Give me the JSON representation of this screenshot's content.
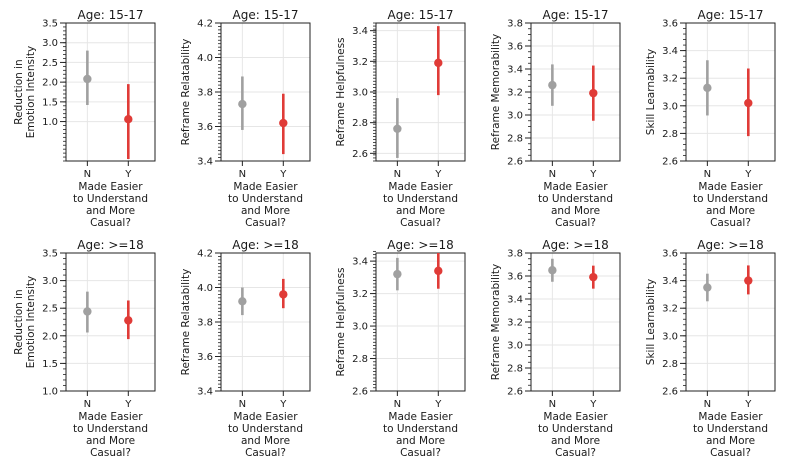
{
  "colors": {
    "N": "#a0a0a0",
    "Y": "#e03b37",
    "grid": "#e6e6e6",
    "axis": "#222222"
  },
  "chart_data": [
    {
      "type": "scatter",
      "title": "Age: 15-17",
      "ylabel": [
        "Reduction in",
        "Emotion Intensity"
      ],
      "ylim": [
        0.0,
        3.5
      ],
      "yticks": [
        "3.5",
        "3.0",
        "2.5",
        "2.0",
        "1.5",
        "1.0"
      ],
      "ytick_values": [
        3.5,
        3.0,
        2.5,
        2.0,
        1.5,
        1.0
      ],
      "minor_step": 0.1,
      "categories": [
        "N",
        "Y"
      ],
      "series": [
        {
          "name": "N",
          "mean": 2.08,
          "low": 1.42,
          "high": 2.8
        },
        {
          "name": "Y",
          "mean": 1.06,
          "low": 0.05,
          "high": 1.95
        }
      ],
      "xlabel": [
        "Made Easier",
        "to Understand",
        "and More",
        "Casual?"
      ]
    },
    {
      "type": "scatter",
      "title": "Age: 15-17",
      "ylabel": [
        "Reframe Relatability"
      ],
      "ylim": [
        3.4,
        4.2
      ],
      "yticks": [
        "4.2",
        "4.0",
        "3.8",
        "3.6",
        "3.4"
      ],
      "ytick_values": [
        4.2,
        4.0,
        3.8,
        3.6,
        3.4
      ],
      "minor_step": 0.02,
      "categories": [
        "N",
        "Y"
      ],
      "series": [
        {
          "name": "N",
          "mean": 3.73,
          "low": 3.58,
          "high": 3.89
        },
        {
          "name": "Y",
          "mean": 3.62,
          "low": 3.44,
          "high": 3.79
        }
      ],
      "xlabel": [
        "Made Easier",
        "to Understand",
        "and More",
        "Casual?"
      ]
    },
    {
      "type": "scatter",
      "title": "Age: 15-17",
      "ylabel": [
        "Reframe Helpfulness"
      ],
      "ylim": [
        2.55,
        3.45
      ],
      "yticks": [
        "3.4",
        "3.2",
        "3.0",
        "2.8",
        "2.6"
      ],
      "ytick_values": [
        3.4,
        3.2,
        3.0,
        2.8,
        2.6
      ],
      "minor_step": 0.02,
      "categories": [
        "N",
        "Y"
      ],
      "series": [
        {
          "name": "N",
          "mean": 2.76,
          "low": 2.57,
          "high": 2.96
        },
        {
          "name": "Y",
          "mean": 3.19,
          "low": 2.98,
          "high": 3.43
        }
      ],
      "xlabel": [
        "Made Easier",
        "to Understand",
        "and More",
        "Casual?"
      ]
    },
    {
      "type": "scatter",
      "title": "Age: 15-17",
      "ylabel": [
        "Reframe Memorability"
      ],
      "ylim": [
        2.6,
        3.8
      ],
      "yticks": [
        "3.8",
        "3.6",
        "3.4",
        "3.2",
        "3.0",
        "2.8",
        "2.6"
      ],
      "ytick_values": [
        3.8,
        3.6,
        3.4,
        3.2,
        3.0,
        2.8,
        2.6
      ],
      "minor_step": 0.05,
      "categories": [
        "N",
        "Y"
      ],
      "series": [
        {
          "name": "N",
          "mean": 3.26,
          "low": 3.08,
          "high": 3.44
        },
        {
          "name": "Y",
          "mean": 3.19,
          "low": 2.95,
          "high": 3.43
        }
      ],
      "xlabel": [
        "Made Easier",
        "to Understand",
        "and More",
        "Casual?"
      ]
    },
    {
      "type": "scatter",
      "title": "Age: 15-17",
      "ylabel": [
        "Skill Learnability"
      ],
      "ylim": [
        2.6,
        3.6
      ],
      "yticks": [
        "3.6",
        "3.4",
        "3.2",
        "3.0",
        "2.8",
        "2.6"
      ],
      "ytick_values": [
        3.6,
        3.4,
        3.2,
        3.0,
        2.8,
        2.6
      ],
      "minor_step": 0.04,
      "categories": [
        "N",
        "Y"
      ],
      "series": [
        {
          "name": "N",
          "mean": 3.13,
          "low": 2.93,
          "high": 3.33
        },
        {
          "name": "Y",
          "mean": 3.02,
          "low": 2.78,
          "high": 3.27
        }
      ],
      "xlabel": [
        "Made Easier",
        "to Understand",
        "and More",
        "Casual?"
      ]
    },
    {
      "type": "scatter",
      "title": "Age: >=18",
      "ylabel": [
        "Reduction in",
        "Emotion Intensity"
      ],
      "ylim": [
        1.0,
        3.5
      ],
      "yticks": [
        "3.5",
        "3.0",
        "2.5",
        "2.0",
        "1.5",
        "1.0"
      ],
      "ytick_values": [
        3.5,
        3.0,
        2.5,
        2.0,
        1.5,
        1.0
      ],
      "minor_step": 0.1,
      "categories": [
        "N",
        "Y"
      ],
      "series": [
        {
          "name": "N",
          "mean": 2.44,
          "low": 2.06,
          "high": 2.8
        },
        {
          "name": "Y",
          "mean": 2.28,
          "low": 1.94,
          "high": 2.64
        }
      ],
      "xlabel": [
        "Made Easier",
        "to Understand",
        "and More",
        "Casual?"
      ]
    },
    {
      "type": "scatter",
      "title": "Age: >=18",
      "ylabel": [
        "Reframe Relatability"
      ],
      "ylim": [
        3.4,
        4.2
      ],
      "yticks": [
        "4.2",
        "4.0",
        "3.8",
        "3.6",
        "3.4"
      ],
      "ytick_values": [
        4.2,
        4.0,
        3.8,
        3.6,
        3.4
      ],
      "minor_step": 0.02,
      "categories": [
        "N",
        "Y"
      ],
      "series": [
        {
          "name": "N",
          "mean": 3.92,
          "low": 3.84,
          "high": 4.0
        },
        {
          "name": "Y",
          "mean": 3.96,
          "low": 3.88,
          "high": 4.05
        }
      ],
      "xlabel": [
        "Made Easier",
        "to Understand",
        "and More",
        "Casual?"
      ]
    },
    {
      "type": "scatter",
      "title": "Age: >=18",
      "ylabel": [
        "Reframe Helpfulness"
      ],
      "ylim": [
        2.6,
        3.45
      ],
      "yticks": [
        "3.4",
        "3.2",
        "3.0",
        "2.8",
        "2.6"
      ],
      "ytick_values": [
        3.4,
        3.2,
        3.0,
        2.8,
        2.6
      ],
      "minor_step": 0.02,
      "categories": [
        "N",
        "Y"
      ],
      "series": [
        {
          "name": "N",
          "mean": 3.32,
          "low": 3.22,
          "high": 3.42
        },
        {
          "name": "Y",
          "mean": 3.34,
          "low": 3.23,
          "high": 3.45
        }
      ],
      "xlabel": [
        "Made Easier",
        "to Understand",
        "and More",
        "Casual?"
      ]
    },
    {
      "type": "scatter",
      "title": "Age: >=18",
      "ylabel": [
        "Reframe Memorability"
      ],
      "ylim": [
        2.6,
        3.8
      ],
      "yticks": [
        "3.8",
        "3.6",
        "3.4",
        "3.2",
        "3.0",
        "2.8",
        "2.6"
      ],
      "ytick_values": [
        3.8,
        3.6,
        3.4,
        3.2,
        3.0,
        2.8,
        2.6
      ],
      "minor_step": 0.05,
      "categories": [
        "N",
        "Y"
      ],
      "series": [
        {
          "name": "N",
          "mean": 3.65,
          "low": 3.55,
          "high": 3.75
        },
        {
          "name": "Y",
          "mean": 3.59,
          "low": 3.49,
          "high": 3.69
        }
      ],
      "xlabel": [
        "Made Easier",
        "to Understand",
        "and More",
        "Casual?"
      ]
    },
    {
      "type": "scatter",
      "title": "Age: >=18",
      "ylabel": [
        "Skill Learnability"
      ],
      "ylim": [
        2.6,
        3.6
      ],
      "yticks": [
        "3.6",
        "3.4",
        "3.2",
        "3.0",
        "2.8",
        "2.6"
      ],
      "ytick_values": [
        3.6,
        3.4,
        3.2,
        3.0,
        2.8,
        2.6
      ],
      "minor_step": 0.04,
      "categories": [
        "N",
        "Y"
      ],
      "series": [
        {
          "name": "N",
          "mean": 3.35,
          "low": 3.25,
          "high": 3.45
        },
        {
          "name": "Y",
          "mean": 3.4,
          "low": 3.3,
          "high": 3.51
        }
      ],
      "xlabel": [
        "Made Easier",
        "to Understand",
        "and More",
        "Casual?"
      ]
    }
  ]
}
